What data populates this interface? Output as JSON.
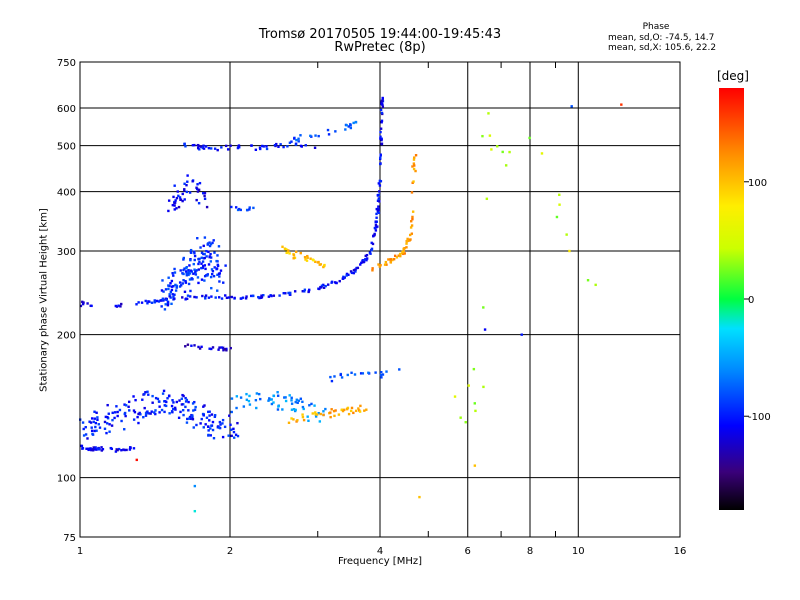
{
  "header": {
    "title_line1": "Tromsø 20170505 19:44:00-19:45:43",
    "title_line2": "RwPretec (8p)"
  },
  "phase_box": {
    "title": "Phase",
    "o_line": "mean, sd,O: -74.5, 14.7",
    "x_line": "mean, sd,X: 105.6, 22.2"
  },
  "colorbar": {
    "unit": "[deg]",
    "ticks": [
      {
        "value": 100,
        "label": "100"
      },
      {
        "value": 0,
        "label": "0"
      },
      {
        "value": -100,
        "label": "-100"
      }
    ],
    "range": [
      -180,
      180
    ]
  },
  "chart_data": {
    "type": "scatter",
    "title": "Tromsø 20170505 19:44:00-19:45:43",
    "subtitle": "RwPretec (8p)",
    "xlabel": "Frequency [MHz]",
    "ylabel": "Stationary phase Virtual Height [km]",
    "x_scale": "log",
    "y_scale": "log",
    "xlim": [
      1,
      16
    ],
    "ylim": [
      75,
      750
    ],
    "grid": true,
    "x_ticks": [
      {
        "value": 1,
        "label": "1"
      },
      {
        "value": 2,
        "label": "2"
      },
      {
        "value": 4,
        "label": "4"
      },
      {
        "value": 6,
        "label": "6"
      },
      {
        "value": 8,
        "label": "8"
      },
      {
        "value": 10,
        "label": "10"
      },
      {
        "value": 16,
        "label": "16"
      }
    ],
    "x_minor": [
      3,
      5,
      7,
      9
    ],
    "y_ticks": [
      {
        "value": 75,
        "label": "75"
      },
      {
        "value": 100,
        "label": "100"
      },
      {
        "value": 200,
        "label": "200"
      },
      {
        "value": 300,
        "label": "300"
      },
      {
        "value": 400,
        "label": "400"
      },
      {
        "value": 500,
        "label": "500"
      },
      {
        "value": 600,
        "label": "600"
      },
      {
        "value": 750,
        "label": "750"
      }
    ],
    "color_variable": "phase [deg]",
    "traces": [
      {
        "x": [
          1.0,
          1.02,
          1.05
        ],
        "y": [
          233,
          230,
          231
        ],
        "phase": -110,
        "n": 8,
        "jx": 0.01,
        "jy": 0.01
      },
      {
        "x": [
          1.15,
          1.2
        ],
        "y": [
          231,
          230
        ],
        "phase": -110,
        "n": 5,
        "jx": 0.01,
        "jy": 0.01
      },
      {
        "x": [
          1.3,
          1.5,
          1.8,
          2.2,
          2.6,
          3.0,
          3.3,
          3.6,
          3.85,
          3.95,
          4.0
        ],
        "y": [
          232,
          238,
          240,
          240,
          243,
          250,
          260,
          275,
          300,
          350,
          430
        ],
        "phase": -105,
        "n": 170,
        "jx": 0.006,
        "jy": 0.008
      },
      {
        "x": [
          4.0,
          4.02,
          4.03,
          4.05
        ],
        "y": [
          430,
          500,
          580,
          640
        ],
        "phase": -110,
        "n": 30,
        "jx": 0.004,
        "jy": 0.01
      },
      {
        "x": [
          3.8,
          4.1,
          4.35,
          4.5,
          4.6,
          4.65,
          4.7
        ],
        "y": [
          272,
          282,
          292,
          300,
          330,
          400,
          480
        ],
        "phase": 115,
        "n": 60,
        "jx": 0.008,
        "jy": 0.012
      },
      {
        "x": [
          2.5,
          2.7,
          2.9,
          3.1
        ],
        "y": [
          310,
          295,
          285,
          280
        ],
        "phase": 95,
        "n": 30,
        "jx": 0.02,
        "jy": 0.02
      },
      {
        "x": [
          1.5,
          1.6,
          1.7,
          1.8,
          1.9
        ],
        "y": [
          240,
          260,
          280,
          300,
          260
        ],
        "phase": -95,
        "n": 160,
        "jx": 0.04,
        "jy": 0.08
      },
      {
        "x": [
          1.5,
          1.6,
          1.7,
          1.8
        ],
        "y": [
          360,
          400,
          420,
          380
        ],
        "phase": -110,
        "n": 45,
        "jx": 0.03,
        "jy": 0.05
      },
      {
        "x": [
          1.6,
          1.8,
          2.2,
          2.6,
          3.0
        ],
        "y": [
          500,
          495,
          495,
          500,
          500
        ],
        "phase": -105,
        "n": 50,
        "jx": 0.01,
        "jy": 0.012
      },
      {
        "x": [
          2.6,
          3.0,
          3.3,
          3.6
        ],
        "y": [
          510,
          530,
          540,
          555
        ],
        "phase": -80,
        "n": 25,
        "jx": 0.01,
        "jy": 0.015
      },
      {
        "x": [
          2.0,
          2.3
        ],
        "y": [
          368,
          368
        ],
        "phase": -90,
        "n": 10,
        "jx": 0.01,
        "jy": 0.01
      },
      {
        "x": [
          1.0,
          1.05,
          1.1,
          1.2,
          1.3
        ],
        "y": [
          116,
          115,
          115,
          114,
          116
        ],
        "phase": -110,
        "n": 40,
        "jx": 0.008,
        "jy": 0.008
      },
      {
        "x": [
          1.0,
          1.2,
          1.4,
          1.6,
          1.8,
          2.0
        ],
        "y": [
          125,
          135,
          145,
          140,
          130,
          125
        ],
        "phase": -100,
        "n": 200,
        "jx": 0.05,
        "jy": 0.06
      },
      {
        "x": [
          1.6,
          1.8,
          2.0
        ],
        "y": [
          190,
          188,
          186
        ],
        "phase": -120,
        "n": 20,
        "jx": 0.01,
        "jy": 0.008
      },
      {
        "x": [
          2.0,
          2.4,
          2.8,
          3.2
        ],
        "y": [
          140,
          145,
          140,
          135
        ],
        "phase": -60,
        "n": 60,
        "jx": 0.04,
        "jy": 0.05
      },
      {
        "x": [
          2.6,
          3.0,
          3.4,
          3.8
        ],
        "y": [
          132,
          135,
          138,
          140
        ],
        "phase": 110,
        "n": 40,
        "jx": 0.02,
        "jy": 0.02
      },
      {
        "x": [
          3.2,
          3.6,
          4.0,
          4.3
        ],
        "y": [
          162,
          165,
          165,
          168
        ],
        "phase": -80,
        "n": 20,
        "jx": 0.02,
        "jy": 0.015
      },
      {
        "x": [
          5.5,
          6.0,
          6.3,
          6.6,
          7.2,
          8.2,
          9.4,
          12.0
        ],
        "y": [
          160,
          130,
          180,
          620,
          440,
          540,
          330,
          210
        ],
        "phase": 40,
        "n": 26,
        "jx": 0.04,
        "jy": 0.05
      }
    ],
    "points": [
      {
        "x": 1.3,
        "y": 109,
        "phase": 175
      },
      {
        "x": 1.7,
        "y": 96,
        "phase": -60
      },
      {
        "x": 1.7,
        "y": 85,
        "phase": -20
      },
      {
        "x": 4.8,
        "y": 91,
        "phase": 100
      },
      {
        "x": 6.2,
        "y": 106,
        "phase": 100
      },
      {
        "x": 9.6,
        "y": 300,
        "phase": 80
      },
      {
        "x": 12.2,
        "y": 610,
        "phase": 160
      },
      {
        "x": 9.7,
        "y": 605,
        "phase": -80
      },
      {
        "x": 7.7,
        "y": 200,
        "phase": -100
      },
      {
        "x": 6.5,
        "y": 205,
        "phase": -110
      }
    ]
  }
}
